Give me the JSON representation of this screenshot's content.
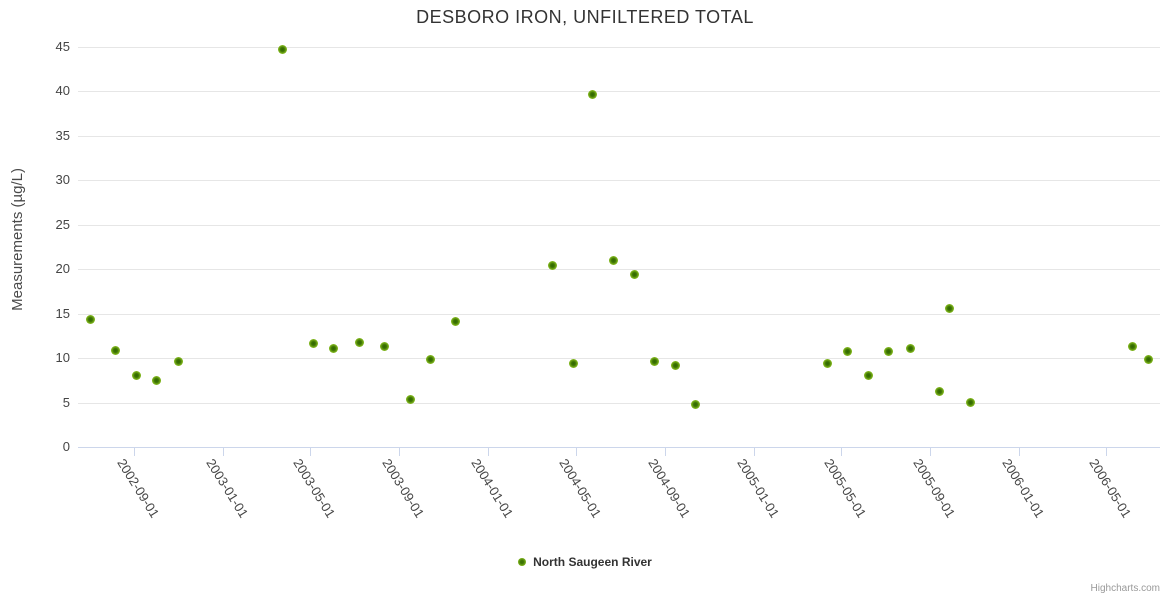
{
  "header": {
    "title": "DESBORO IRON, UNFILTERED TOTAL"
  },
  "credits": {
    "text": "Highcharts.com"
  },
  "chart_data": {
    "type": "scatter",
    "title": "DESBORO IRON, UNFILTERED TOTAL",
    "xlabel": "",
    "ylabel": "Measurements (µg/L)",
    "ylim": [
      0,
      45
    ],
    "y_ticks": [
      0,
      5,
      10,
      15,
      20,
      25,
      30,
      35,
      40,
      45
    ],
    "x_range": [
      "2002-06-16",
      "2006-07-14"
    ],
    "x_ticks": [
      "2002-09-01",
      "2003-01-01",
      "2003-05-01",
      "2003-09-01",
      "2004-01-01",
      "2004-05-01",
      "2004-09-01",
      "2005-01-01",
      "2005-05-01",
      "2005-09-01",
      "2006-01-01",
      "2006-05-01"
    ],
    "grid": "horizontal",
    "legend_position": "bottom-center",
    "marker_color": "#7db31b",
    "series": [
      {
        "name": "North Saugeen River",
        "color": "#7db31b",
        "points": [
          [
            "2002-07-03",
            14.3
          ],
          [
            "2002-08-07",
            10.9
          ],
          [
            "2002-09-05",
            8.0
          ],
          [
            "2002-10-02",
            7.5
          ],
          [
            "2002-11-01",
            9.6
          ],
          [
            "2003-03-25",
            44.7
          ],
          [
            "2003-05-06",
            11.6
          ],
          [
            "2003-06-02",
            11.1
          ],
          [
            "2003-07-09",
            11.8
          ],
          [
            "2003-08-12",
            11.3
          ],
          [
            "2003-09-16",
            5.3
          ],
          [
            "2003-10-14",
            9.8
          ],
          [
            "2003-11-18",
            14.1
          ],
          [
            "2004-03-30",
            20.4
          ],
          [
            "2004-04-28",
            9.4
          ],
          [
            "2004-05-24",
            39.7
          ],
          [
            "2004-06-22",
            21.0
          ],
          [
            "2004-07-21",
            19.4
          ],
          [
            "2004-08-17",
            9.6
          ],
          [
            "2004-09-15",
            9.2
          ],
          [
            "2004-10-13",
            4.8
          ],
          [
            "2005-04-13",
            9.4
          ],
          [
            "2005-05-10",
            10.8
          ],
          [
            "2005-06-08",
            8.0
          ],
          [
            "2005-07-06",
            10.8
          ],
          [
            "2005-08-04",
            11.1
          ],
          [
            "2005-09-13",
            6.2
          ],
          [
            "2005-09-27",
            15.6
          ],
          [
            "2005-10-26",
            5.0
          ],
          [
            "2006-06-06",
            11.3
          ],
          [
            "2006-06-28",
            9.8
          ]
        ]
      }
    ]
  }
}
